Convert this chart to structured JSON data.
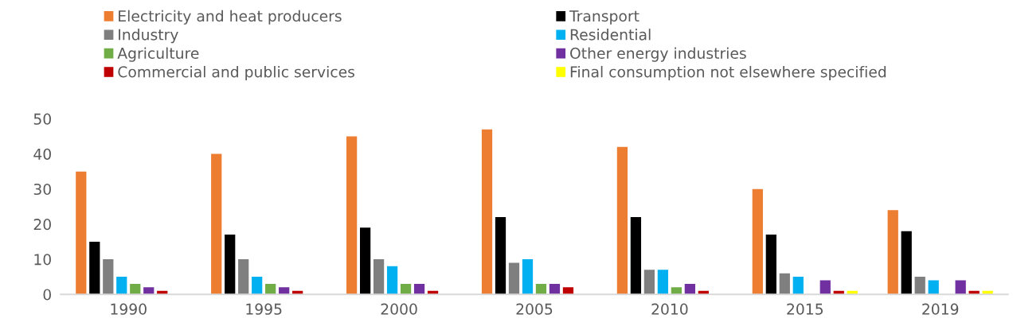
{
  "chart_data": {
    "type": "bar",
    "categories": [
      "1990",
      "1995",
      "2000",
      "2005",
      "2010",
      "2015",
      "2019"
    ],
    "series": [
      {
        "name": "Electricity and heat producers",
        "color": "#ed7d31",
        "values": [
          35,
          40,
          45,
          47,
          42,
          30,
          24
        ]
      },
      {
        "name": "Transport",
        "color": "#000000",
        "values": [
          15,
          17,
          19,
          22,
          22,
          17,
          18
        ]
      },
      {
        "name": "Industry",
        "color": "#7f7f7f",
        "values": [
          10,
          10,
          10,
          9,
          7,
          6,
          5
        ]
      },
      {
        "name": "Residential",
        "color": "#00b0f0",
        "values": [
          5,
          5,
          8,
          10,
          7,
          5,
          4
        ]
      },
      {
        "name": "Agriculture",
        "color": "#70ad47",
        "values": [
          3,
          3,
          3,
          3,
          2,
          null,
          null
        ]
      },
      {
        "name": "Other energy industries",
        "color": "#7030a0",
        "values": [
          2,
          2,
          3,
          3,
          3,
          4,
          4
        ]
      },
      {
        "name": "Commercial and public services",
        "color": "#c00000",
        "values": [
          1,
          1,
          1,
          2,
          1,
          1,
          1
        ]
      },
      {
        "name": "Final consumption not elsewhere specified",
        "color": "#ffff00",
        "values": [
          null,
          null,
          null,
          null,
          null,
          1,
          1
        ]
      }
    ],
    "ylim": [
      0,
      50
    ],
    "yticks": [
      0,
      10,
      20,
      30,
      40,
      50
    ],
    "grid": false,
    "legend": "top"
  }
}
